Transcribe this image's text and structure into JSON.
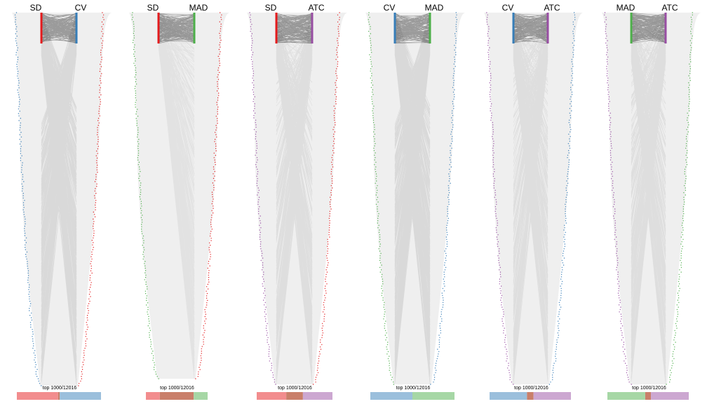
{
  "colors": {
    "SD": "#e41a1c",
    "CV": "#377eb8",
    "MAD": "#4daf4a",
    "ATC": "#984ea3",
    "band": "#efefef",
    "lines": "#000000"
  },
  "metrics": [
    "SD",
    "CV",
    "MAD",
    "ATC"
  ],
  "comparisons": [
    {
      "left": "SD",
      "right": "CV",
      "note": "top 1000/12016",
      "overlap_fraction": 0.02,
      "crossing": "strong"
    },
    {
      "left": "SD",
      "right": "MAD",
      "note": "top 1000/12016",
      "overlap_fraction": 0.55,
      "crossing": "weak"
    },
    {
      "left": "SD",
      "right": "ATC",
      "note": "top 1000/12016",
      "overlap_fraction": 0.22,
      "crossing": "medium"
    },
    {
      "left": "CV",
      "right": "MAD",
      "note": "top 1000/12016",
      "overlap_fraction": 0.0,
      "crossing": "strong"
    },
    {
      "left": "CV",
      "right": "ATC",
      "note": "top 1000/12016",
      "overlap_fraction": 0.08,
      "crossing": "medium"
    },
    {
      "left": "MAD",
      "right": "ATC",
      "note": "top 1000/12016",
      "overlap_fraction": 0.07,
      "crossing": "medium"
    }
  ]
}
